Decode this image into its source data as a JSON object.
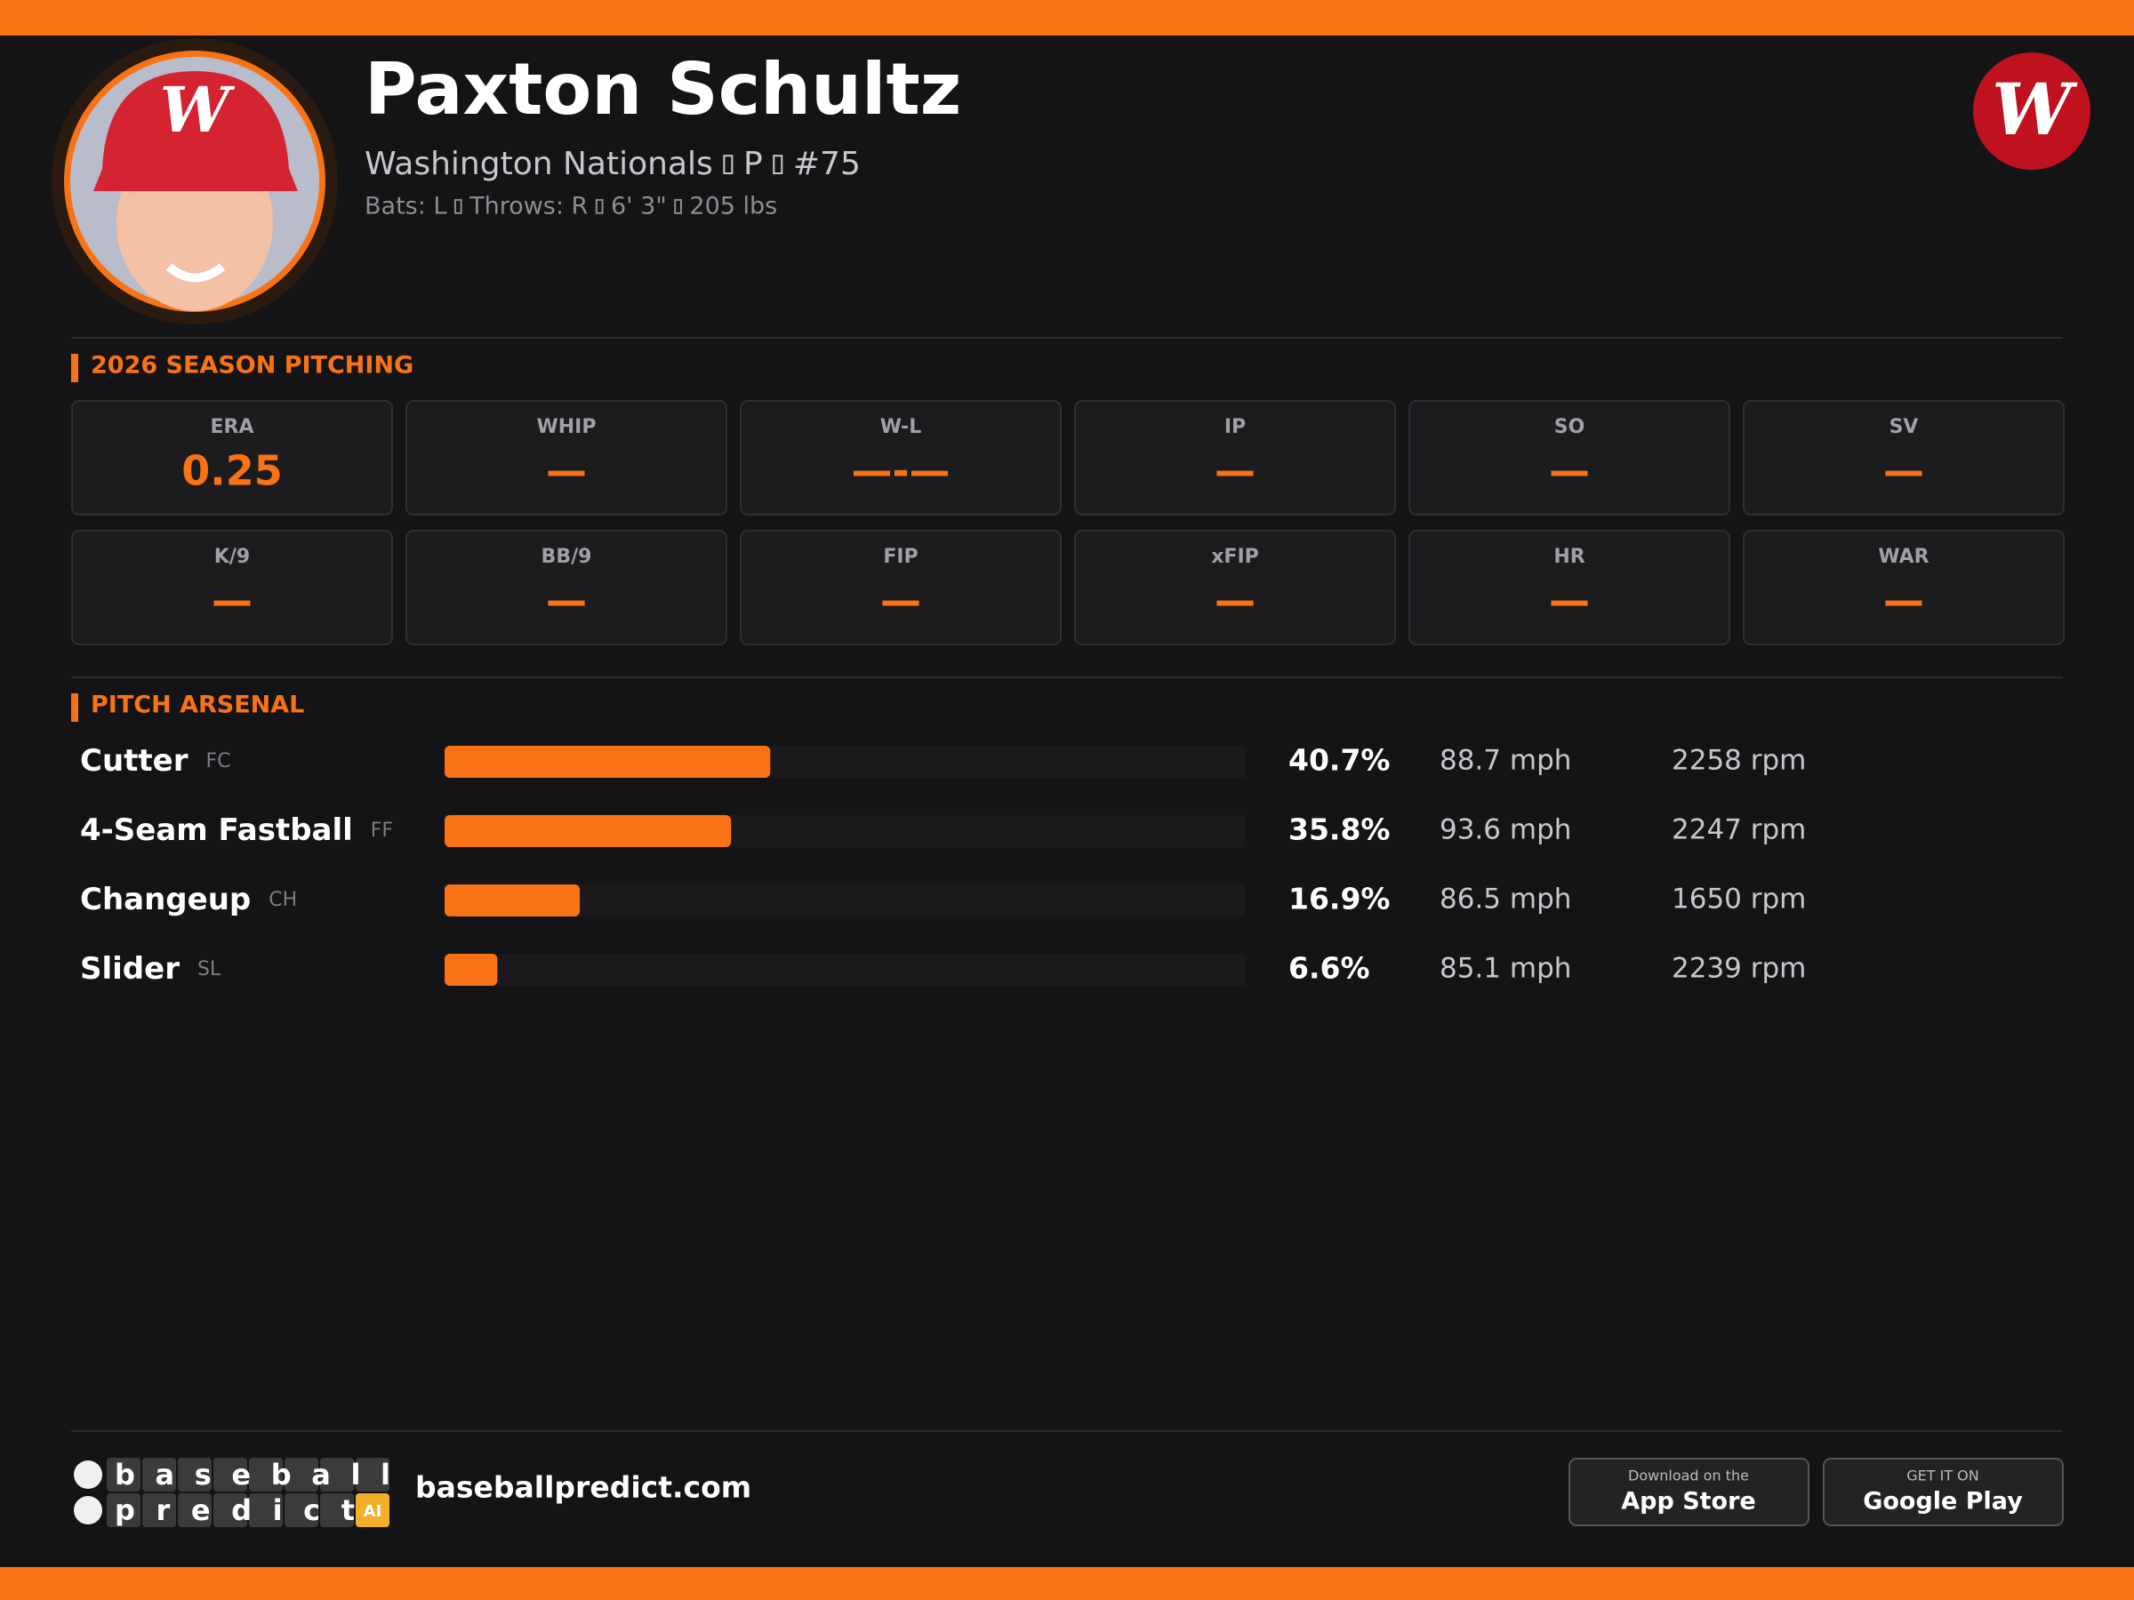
{
  "header": {
    "name": "Paxton Schultz",
    "team": "Washington Nationals",
    "position": "P",
    "number": "#75",
    "bats": "Bats: L",
    "throws": "Throws: R",
    "height": "6' 3\"",
    "weight": "205 lbs"
  },
  "season": {
    "title": "2026 SEASON PITCHING",
    "stats": [
      {
        "label": "ERA",
        "value": "0.25"
      },
      {
        "label": "WHIP",
        "value": "—"
      },
      {
        "label": "W-L",
        "value": "—-—"
      },
      {
        "label": "IP",
        "value": "—"
      },
      {
        "label": "SO",
        "value": "—"
      },
      {
        "label": "SV",
        "value": "—"
      },
      {
        "label": "K/9",
        "value": "—"
      },
      {
        "label": "BB/9",
        "value": "—"
      },
      {
        "label": "FIP",
        "value": "—"
      },
      {
        "label": "xFIP",
        "value": "—"
      },
      {
        "label": "HR",
        "value": "—"
      },
      {
        "label": "WAR",
        "value": "—"
      }
    ]
  },
  "arsenal": {
    "title": "PITCH ARSENAL",
    "pitches": [
      {
        "name": "Cutter",
        "code": "FC",
        "usage": {
          "value": 40.7,
          "label": "40.7%"
        },
        "velocity": "88.7 mph",
        "spin": "2258 rpm"
      },
      {
        "name": "4-Seam Fastball",
        "code": "FF",
        "usage": {
          "value": 35.8,
          "label": "35.8%"
        },
        "velocity": "93.6 mph",
        "spin": "2247 rpm"
      },
      {
        "name": "Changeup",
        "code": "CH",
        "usage": {
          "value": 16.9,
          "label": "16.9%"
        },
        "velocity": "86.5 mph",
        "spin": "1650 rpm"
      },
      {
        "name": "Slider",
        "code": "SL",
        "usage": {
          "value": 6.6,
          "label": "6.6%"
        },
        "velocity": "85.1 mph",
        "spin": "2239 rpm"
      }
    ]
  },
  "footer": {
    "logo_top": "baseball",
    "logo_bottom": "predict",
    "logo_badge": "AI",
    "site": "baseballpredict.com",
    "app_store": {
      "small": "Download on the",
      "big": "App Store"
    },
    "google_play": {
      "small": "GET IT ON",
      "big": "Google Play"
    }
  }
}
